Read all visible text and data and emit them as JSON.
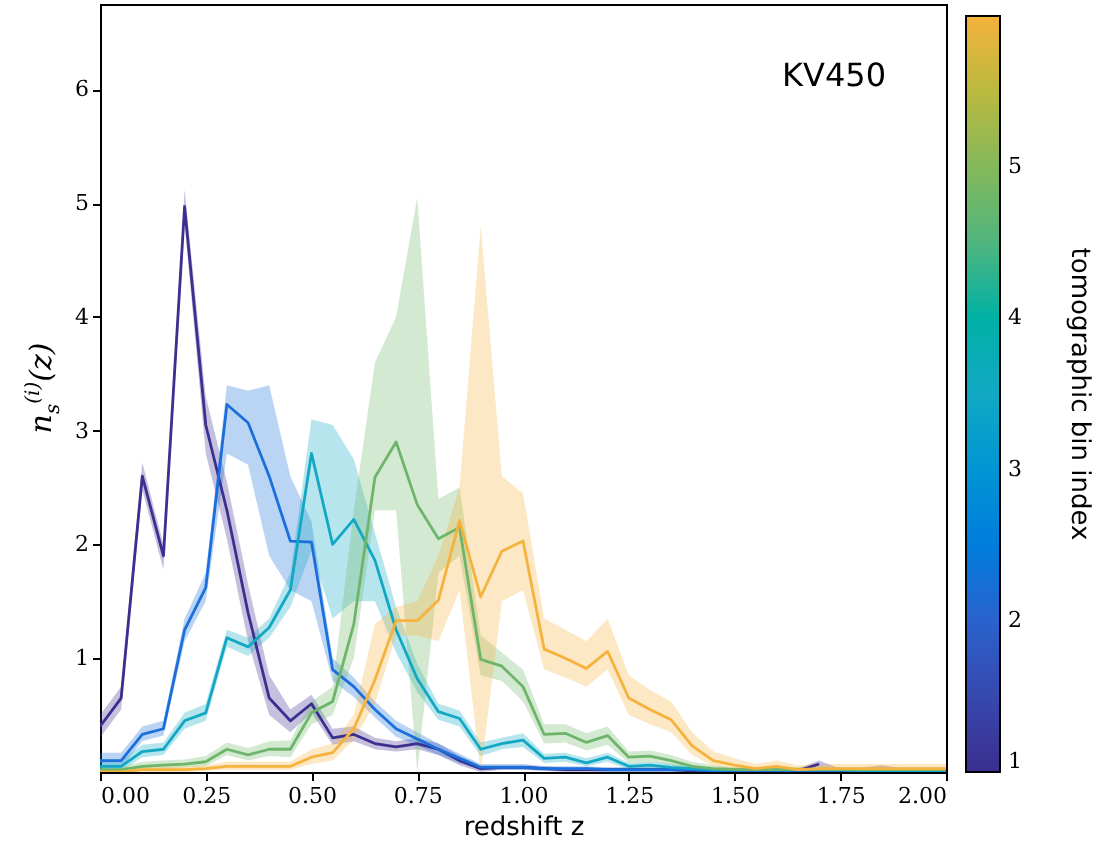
{
  "chart_data": {
    "type": "line",
    "xlabel": "redshift z",
    "ylabel": "n$_{s}$$^{(i)}$(z)",
    "clabel": "tomographic bin index",
    "clim": [
      1,
      6
    ],
    "cticks": [
      1,
      2,
      3,
      4,
      5
    ],
    "annotations": [
      "KV450"
    ],
    "x": [
      0,
      0.05,
      0.1,
      0.15,
      0.2,
      0.25,
      0.3,
      0.35,
      0.4,
      0.45,
      0.5,
      0.55,
      0.6,
      0.65,
      0.7,
      0.75,
      0.8,
      0.85,
      0.9,
      0.95,
      1.0,
      1.05,
      1.1,
      1.15,
      1.2,
      1.25,
      1.3,
      1.35,
      1.4,
      1.45,
      1.5,
      1.55,
      1.6,
      1.65,
      1.7,
      1.75,
      1.8,
      1.85,
      1.9,
      1.95,
      2.0
    ],
    "xlim": [
      0,
      2
    ],
    "xticks": [
      {
        "value": 0,
        "label": "0.00"
      },
      {
        "value": 0.25,
        "label": "0.25"
      },
      {
        "value": 0.5,
        "label": "0.50"
      },
      {
        "value": 0.75,
        "label": "0.75"
      },
      {
        "value": 1,
        "label": "1.00"
      },
      {
        "value": 1.25,
        "label": "1.25"
      },
      {
        "value": 1.5,
        "label": "1.50"
      },
      {
        "value": 1.75,
        "label": "1.75"
      },
      {
        "value": 2,
        "label": "2.00"
      }
    ],
    "ylim": [
      0,
      6.75
    ],
    "yticks": [
      1,
      2,
      3,
      4,
      5,
      6
    ],
    "grid": false,
    "line_style": "solid",
    "marker": "none",
    "series": [
      {
        "color": "#3b2f8f",
        "values": [
          0.4,
          0.65,
          2.6,
          1.9,
          4.97,
          3.05,
          2.3,
          1.4,
          0.65,
          0.45,
          0.6,
          0.3,
          0.33,
          0.25,
          0.22,
          0.25,
          0.2,
          0.1,
          0.03,
          0.04,
          0.04,
          0.03,
          0.02,
          0.02,
          0.02,
          0.02,
          0.02,
          0.02,
          0.01,
          0.01,
          null,
          null,
          null,
          0.01,
          0.07,
          null,
          null,
          null,
          null,
          null,
          null
        ],
        "upper": [
          0.5,
          0.75,
          2.72,
          2.0,
          5.12,
          3.3,
          2.55,
          1.65,
          0.85,
          0.55,
          0.68,
          0.38,
          0.4,
          0.3,
          0.27,
          0.3,
          0.25,
          0.14,
          0.06,
          0.06,
          0.06,
          0.05,
          0.04,
          0.04,
          0.04,
          0.04,
          0.04,
          0.04,
          0.03,
          0.03,
          0.03,
          0.03,
          0.03,
          0.03,
          0.1,
          0.03,
          0.04,
          0.06,
          0.03,
          0.03,
          0.03
        ],
        "lower": [
          0.3,
          0.55,
          2.48,
          1.78,
          4.82,
          2.8,
          2.05,
          1.15,
          0.5,
          0.35,
          0.52,
          0.24,
          0.27,
          0.2,
          0.18,
          0.2,
          0.15,
          0.06,
          0,
          0.02,
          0.02,
          0.01,
          0,
          0,
          0,
          0,
          0,
          0,
          0,
          0,
          0,
          0,
          0,
          0,
          0.04,
          0,
          0,
          0.02,
          0,
          0,
          0
        ]
      },
      {
        "color": "#1a6fdc",
        "values": [
          0.1,
          0.1,
          0.33,
          0.38,
          1.25,
          1.62,
          3.23,
          3.07,
          2.6,
          2.03,
          2.02,
          0.9,
          0.75,
          0.55,
          0.38,
          0.29,
          0.2,
          0.12,
          0.04,
          0.04,
          0.04,
          0.03,
          0.03,
          0.03,
          0.02,
          0.02,
          0.02,
          0.02,
          0.02,
          0.01,
          0.01,
          0.01,
          0.01,
          0.01,
          0.01,
          0.01,
          0.01,
          null,
          null,
          null,
          null
        ],
        "upper": [
          0.17,
          0.17,
          0.4,
          0.45,
          1.35,
          1.75,
          3.4,
          3.35,
          3.4,
          2.6,
          2.2,
          1.0,
          0.83,
          0.62,
          0.45,
          0.35,
          0.25,
          0.16,
          0.07,
          0.07,
          0.07,
          0.05,
          0.05,
          0.05,
          0.04,
          0.04,
          0.04,
          0.04,
          0.04,
          0.03,
          0.03,
          0.03,
          0.03,
          0.03,
          0.03,
          0.03,
          0.03,
          0.03,
          0.03,
          0.03,
          0.03
        ],
        "lower": [
          0.04,
          0.04,
          0.27,
          0.32,
          1.15,
          1.5,
          2.8,
          2.7,
          1.9,
          1.6,
          1.5,
          0.8,
          0.66,
          0.48,
          0.31,
          0.23,
          0.15,
          0.08,
          0.02,
          0.02,
          0.02,
          0.01,
          0.01,
          0.01,
          0,
          0,
          0,
          0,
          0,
          0,
          0,
          0,
          0,
          0,
          0,
          0,
          0,
          0,
          0,
          0,
          0
        ]
      },
      {
        "color": "#12a8c4",
        "values": [
          0.05,
          0.05,
          0.18,
          0.2,
          0.45,
          0.52,
          1.18,
          1.1,
          1.27,
          1.6,
          2.8,
          2.0,
          2.22,
          1.86,
          1.25,
          0.82,
          0.53,
          0.47,
          0.2,
          0.25,
          0.28,
          0.12,
          0.13,
          0.08,
          0.13,
          0.05,
          0.06,
          0.04,
          0.03,
          0.02,
          0.02,
          null,
          null,
          0.02,
          0.02,
          0.02,
          0.01,
          0.01,
          0.01,
          0.01,
          0.01
        ],
        "upper": [
          0.1,
          0.1,
          0.24,
          0.26,
          0.52,
          0.6,
          1.25,
          1.18,
          1.35,
          1.75,
          3.1,
          3.05,
          2.75,
          2.1,
          1.45,
          0.95,
          0.6,
          0.54,
          0.26,
          0.3,
          0.34,
          0.16,
          0.17,
          0.12,
          0.17,
          0.08,
          0.09,
          0.07,
          0.05,
          0.04,
          0.04,
          0.04,
          0.04,
          0.04,
          0.04,
          0.04,
          0.03,
          0.03,
          0.03,
          0.03,
          0.03
        ],
        "lower": [
          0.01,
          0.01,
          0.13,
          0.15,
          0.38,
          0.45,
          1.1,
          1.02,
          1.18,
          1.45,
          1.95,
          1.35,
          1.5,
          1.5,
          1.05,
          0.7,
          0.46,
          0.4,
          0.14,
          0.2,
          0.22,
          0.08,
          0.09,
          0.05,
          0.09,
          0.02,
          0.03,
          0.01,
          0.01,
          0,
          0,
          0,
          0,
          0,
          0,
          0,
          0,
          0,
          0,
          0,
          0
        ]
      },
      {
        "color": "#6db56a",
        "values": [
          0.02,
          0.02,
          0.05,
          0.06,
          0.07,
          0.09,
          0.2,
          0.15,
          0.2,
          0.2,
          0.52,
          0.62,
          1.3,
          2.59,
          2.9,
          2.35,
          2.05,
          2.15,
          0.99,
          0.93,
          0.75,
          0.33,
          0.34,
          0.26,
          0.32,
          0.13,
          0.14,
          0.1,
          0.05,
          0.03,
          0.02,
          0.02,
          0.02,
          0.02,
          0.02,
          0.02,
          0.02,
          0.02,
          0.02,
          0.02,
          0.02
        ],
        "upper": [
          0.05,
          0.05,
          0.09,
          0.1,
          0.11,
          0.14,
          0.26,
          0.21,
          0.27,
          0.28,
          0.62,
          0.75,
          2.3,
          3.6,
          4.0,
          5.05,
          2.4,
          2.5,
          1.2,
          1.05,
          0.9,
          0.42,
          0.42,
          0.34,
          0.4,
          0.18,
          0.19,
          0.15,
          0.09,
          0.06,
          0.04,
          0.04,
          0.04,
          0.04,
          0.04,
          0.04,
          0.04,
          0.04,
          0.04,
          0.04,
          0.04
        ],
        "lower": [
          0,
          0,
          0.02,
          0.03,
          0.04,
          0.05,
          0.15,
          0.1,
          0.14,
          0.13,
          0.42,
          0.5,
          1.0,
          2.3,
          2.3,
          0,
          1.75,
          1.9,
          0.85,
          0.8,
          0.62,
          0.25,
          0.26,
          0.19,
          0.24,
          0.08,
          0.09,
          0.06,
          0.02,
          0.01,
          0,
          0,
          0,
          0,
          0,
          0,
          0,
          0,
          0,
          0,
          0
        ]
      },
      {
        "color": "#f5b23c",
        "values": [
          0,
          0,
          0.02,
          0.02,
          0.02,
          0.03,
          0.05,
          0.05,
          0.05,
          0.05,
          0.13,
          0.17,
          0.38,
          0.81,
          1.33,
          1.33,
          1.51,
          2.21,
          1.54,
          1.94,
          2.03,
          1.08,
          1.0,
          0.91,
          1.06,
          0.65,
          0.55,
          0.46,
          0.23,
          0.1,
          0.06,
          0.03,
          0.05,
          0.02,
          0.03,
          0.03,
          0.03,
          0.03,
          0.03,
          0.03,
          0.03
        ],
        "upper": [
          0.03,
          0.03,
          0.05,
          0.05,
          0.05,
          0.06,
          0.09,
          0.09,
          0.09,
          0.09,
          0.2,
          0.25,
          0.5,
          1.3,
          1.45,
          1.5,
          1.9,
          2.5,
          4.8,
          2.6,
          2.45,
          1.35,
          1.25,
          1.15,
          1.35,
          0.85,
          0.72,
          0.62,
          0.35,
          0.18,
          0.12,
          0.07,
          0.1,
          0.06,
          0.07,
          0.07,
          0.07,
          0.07,
          0.07,
          0.07,
          0.07
        ],
        "lower": [
          0,
          0,
          0,
          0,
          0,
          0.01,
          0.02,
          0.02,
          0.02,
          0.02,
          0.07,
          0.1,
          0.28,
          0.6,
          1.2,
          1.2,
          1.15,
          1.6,
          0,
          1.5,
          1.6,
          0.9,
          0.83,
          0.75,
          0.9,
          0.5,
          0.42,
          0.35,
          0.15,
          0.05,
          0.02,
          0,
          0.01,
          0,
          0,
          0,
          0,
          0,
          0,
          0,
          0
        ]
      }
    ]
  }
}
